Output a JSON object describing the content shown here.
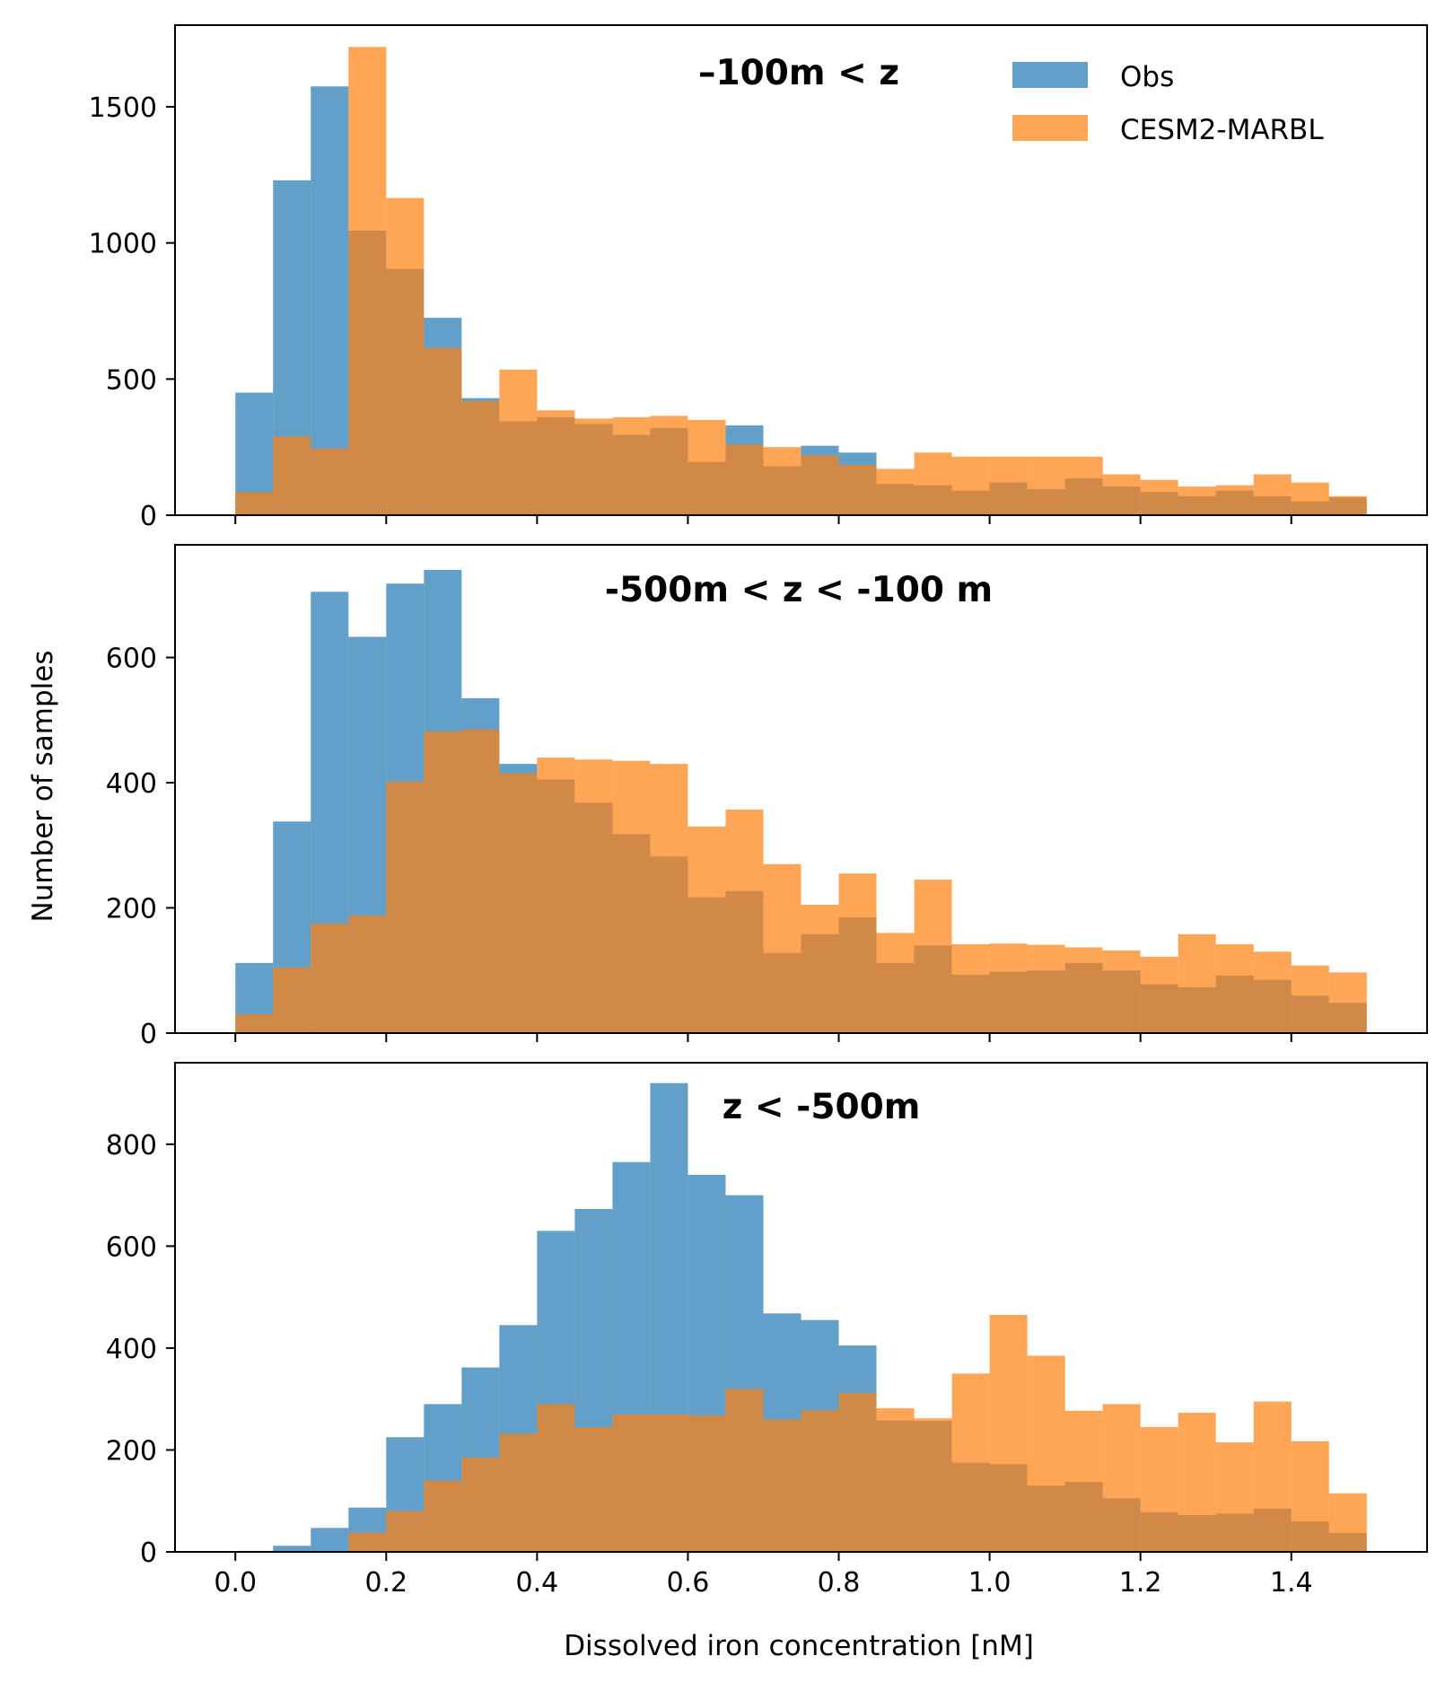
{
  "colors": {
    "obs": "#1f77b4",
    "model": "#ff7f0e",
    "bar_opacity": 0.7
  },
  "legend": {
    "obs_label": "Obs",
    "model_label": "CESM2-MARBL",
    "placement": "top-right of top panel"
  },
  "xlabel": "Dissolved iron concentration [nM]",
  "ylabel": "Number of samples",
  "chart_data": [
    {
      "type": "bar",
      "title": "–100m < z",
      "bin_width": 0.05,
      "bin_starts": [
        0.0,
        0.05,
        0.1,
        0.15,
        0.2,
        0.25,
        0.3,
        0.35,
        0.4,
        0.45,
        0.5,
        0.55,
        0.6,
        0.65,
        0.7,
        0.75,
        0.8,
        0.85,
        0.9,
        0.95,
        1.0,
        1.05,
        1.1,
        1.15,
        1.2,
        1.25,
        1.3,
        1.35,
        1.4,
        1.45
      ],
      "series": [
        {
          "name": "Obs",
          "values": [
            450,
            1230,
            1575,
            1045,
            905,
            725,
            430,
            345,
            360,
            335,
            295,
            320,
            195,
            330,
            180,
            255,
            230,
            115,
            110,
            90,
            120,
            95,
            135,
            105,
            85,
            70,
            90,
            70,
            50,
            65
          ]
        },
        {
          "name": "CESM2-MARBL",
          "values": [
            85,
            290,
            245,
            1720,
            1165,
            615,
            420,
            535,
            385,
            355,
            360,
            365,
            350,
            260,
            250,
            220,
            185,
            170,
            230,
            215,
            215,
            215,
            215,
            150,
            130,
            105,
            110,
            150,
            120,
            70
          ]
        }
      ],
      "xlim": [
        -0.08,
        1.58
      ],
      "ylim": [
        0,
        1800
      ],
      "xticks": [
        "0.0",
        "0.2",
        "0.4",
        "0.6",
        "0.8",
        "1.0",
        "1.2",
        "1.4"
      ],
      "yticks": [
        0,
        500,
        1000,
        1500
      ],
      "show_xtick_labels": false,
      "legend": true,
      "grid": false
    },
    {
      "type": "bar",
      "title": "-500m < z < -100 m",
      "bin_width": 0.05,
      "bin_starts": [
        0.0,
        0.05,
        0.1,
        0.15,
        0.2,
        0.25,
        0.3,
        0.35,
        0.4,
        0.45,
        0.5,
        0.55,
        0.6,
        0.65,
        0.7,
        0.75,
        0.8,
        0.85,
        0.9,
        0.95,
        1.0,
        1.05,
        1.1,
        1.15,
        1.2,
        1.25,
        1.3,
        1.35,
        1.4,
        1.45
      ],
      "series": [
        {
          "name": "Obs",
          "values": [
            112,
            338,
            705,
            633,
            718,
            740,
            535,
            430,
            405,
            368,
            318,
            282,
            217,
            227,
            128,
            158,
            185,
            112,
            140,
            93,
            98,
            100,
            112,
            100,
            78,
            73,
            92,
            85,
            60,
            48
          ]
        },
        {
          "name": "CESM2-MARBL",
          "values": [
            30,
            105,
            175,
            188,
            402,
            482,
            485,
            415,
            440,
            437,
            435,
            430,
            330,
            357,
            270,
            205,
            255,
            160,
            245,
            142,
            143,
            141,
            137,
            132,
            122,
            158,
            142,
            130,
            108,
            97
          ]
        }
      ],
      "xlim": [
        -0.08,
        1.58
      ],
      "ylim": [
        0,
        780
      ],
      "xticks": [
        "0.0",
        "0.2",
        "0.4",
        "0.6",
        "0.8",
        "1.0",
        "1.2",
        "1.4"
      ],
      "yticks": [
        0,
        200,
        400,
        600
      ],
      "show_xtick_labels": false,
      "legend": false,
      "grid": false
    },
    {
      "type": "bar",
      "title": "z < -500m",
      "bin_width": 0.05,
      "bin_starts": [
        0.0,
        0.05,
        0.1,
        0.15,
        0.2,
        0.25,
        0.3,
        0.35,
        0.4,
        0.45,
        0.5,
        0.55,
        0.6,
        0.65,
        0.7,
        0.75,
        0.8,
        0.85,
        0.9,
        0.95,
        1.0,
        1.05,
        1.1,
        1.15,
        1.2,
        1.25,
        1.3,
        1.35,
        1.4,
        1.45
      ],
      "series": [
        {
          "name": "Obs",
          "values": [
            2,
            12,
            47,
            87,
            225,
            290,
            362,
            445,
            630,
            673,
            765,
            920,
            740,
            700,
            468,
            455,
            405,
            258,
            257,
            175,
            172,
            130,
            137,
            105,
            78,
            72,
            75,
            85,
            60,
            37
          ]
        },
        {
          "name": "CESM2-MARBL",
          "values": [
            0,
            0,
            0,
            38,
            80,
            140,
            185,
            232,
            290,
            245,
            270,
            270,
            268,
            320,
            260,
            278,
            312,
            282,
            262,
            350,
            465,
            385,
            277,
            290,
            245,
            273,
            215,
            295,
            217,
            115
          ]
        }
      ],
      "xlim": [
        -0.08,
        1.58
      ],
      "ylim": [
        0,
        960
      ],
      "xticks": [
        "0.0",
        "0.2",
        "0.4",
        "0.6",
        "0.8",
        "1.0",
        "1.2",
        "1.4"
      ],
      "yticks": [
        0,
        200,
        400,
        600,
        800
      ],
      "show_xtick_labels": true,
      "legend": false,
      "grid": false
    }
  ]
}
